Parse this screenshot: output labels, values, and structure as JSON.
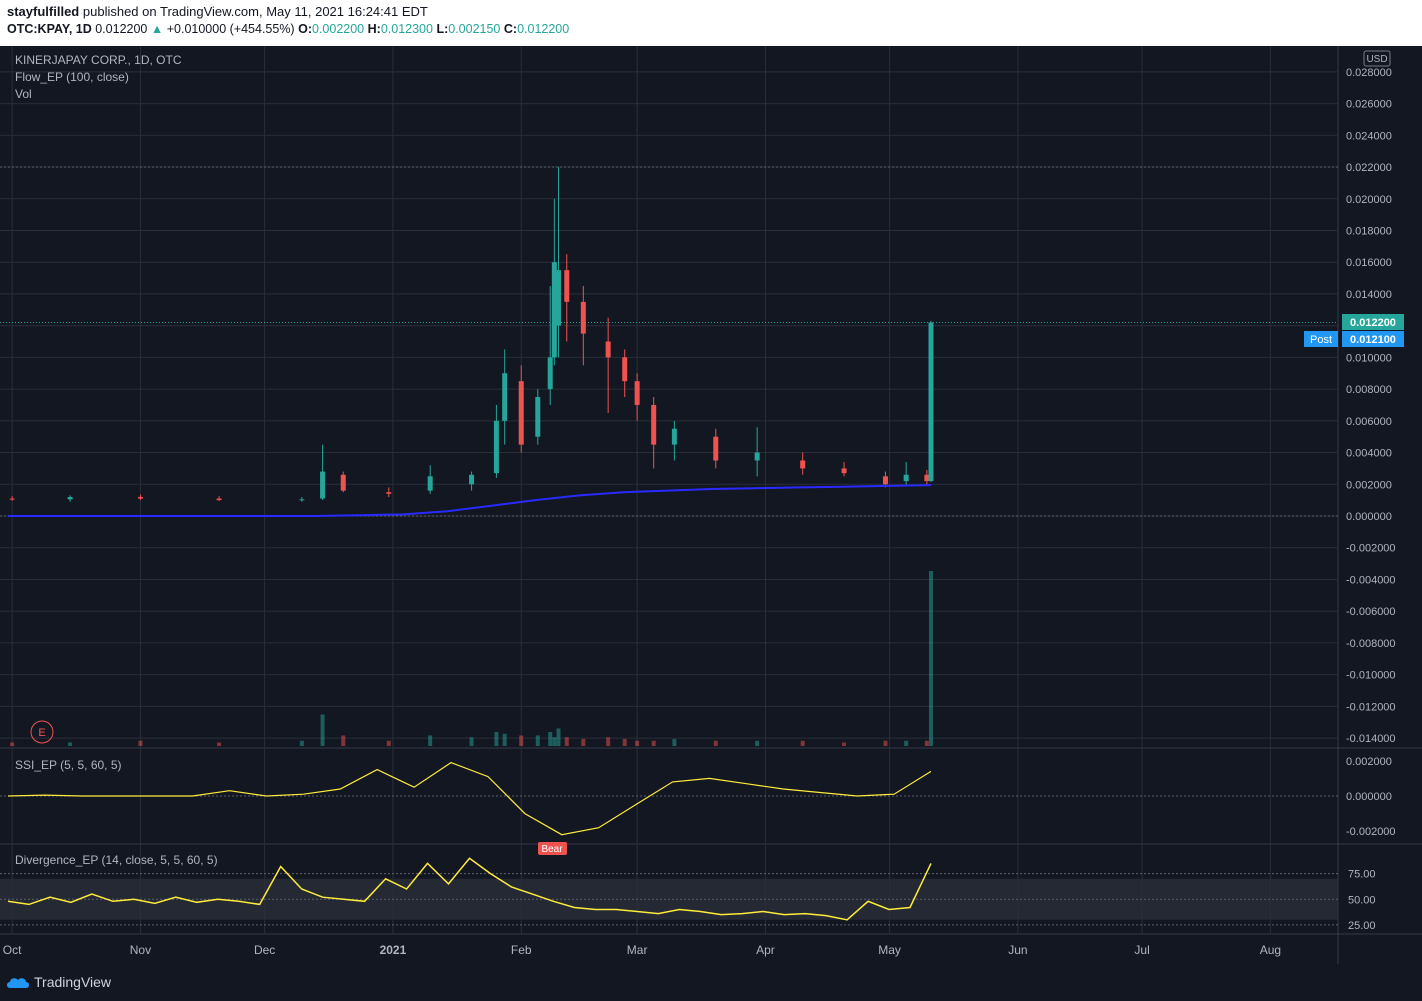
{
  "header": {
    "user": "stayfulfilled",
    "published_text": "published on TradingView.com, May 11, 2021 16:24:41 EDT",
    "symbol": "OTC:KPAY, 1D",
    "last": "0.012200",
    "arrow": "▲",
    "change": "+0.010000 (+454.55%)",
    "o_label": "O:",
    "o_val": "0.002200",
    "h_label": "H:",
    "h_val": "0.012300",
    "l_label": "L:",
    "l_val": "0.002150",
    "c_label": "C:",
    "c_val": "0.012200"
  },
  "legend": {
    "title": "KINERJAPAY CORP., 1D, OTC",
    "ind1": "Flow_EP (100, close)",
    "ind2": "Vol",
    "ssi": "SSI_EP (5, 5, 60, 5)",
    "div": "Divergence_EP (14, close, 5, 5, 60, 5)",
    "bear_label": "Bear",
    "event_marker": "E"
  },
  "price_axis": {
    "currency": "USD",
    "labels": [
      "0.028000",
      "0.026000",
      "0.024000",
      "0.022000",
      "0.020000",
      "0.018000",
      "0.016000",
      "0.014000",
      "0.012000",
      "0.010000",
      "0.008000",
      "0.006000",
      "0.004000",
      "0.002000",
      "0.000000",
      "-0.002000",
      "-0.004000",
      "-0.006000",
      "-0.008000",
      "-0.010000",
      "-0.012000",
      "-0.014000"
    ],
    "last_price_tag": "0.012200",
    "post_label": "Post",
    "post_price_tag": "0.012100"
  },
  "ssi_axis": {
    "labels": [
      "0.002000",
      "0.000000",
      "-0.002000"
    ]
  },
  "div_axis": {
    "labels": [
      "75.00",
      "50.00",
      "25.00"
    ]
  },
  "time_axis": {
    "labels": [
      "Oct",
      "Nov",
      "Dec",
      "2021",
      "Feb",
      "Mar",
      "Apr",
      "May",
      "Jun",
      "Jul",
      "Aug"
    ]
  },
  "footer": {
    "brand": "TradingView"
  },
  "colors": {
    "bg": "#131722",
    "grid": "#2a2e39",
    "up": "#26a69a",
    "down": "#ef5350",
    "flow": "#2a2aff",
    "ssi": "#ffeb3b",
    "text": "#b2b5be",
    "tag": "#2196f3"
  },
  "chart_data": {
    "type": "candlestick",
    "title": "KINERJAPAY CORP., 1D, OTC",
    "ylim": [
      -0.0145,
      0.029
    ],
    "candles": [
      {
        "d": "2020-10-01",
        "o": 0.0011,
        "h": 0.00125,
        "l": 0.00095,
        "c": 0.00105
      },
      {
        "d": "2020-10-15",
        "o": 0.00105,
        "h": 0.0013,
        "l": 0.0009,
        "c": 0.0012
      },
      {
        "d": "2020-11-01",
        "o": 0.0012,
        "h": 0.00135,
        "l": 0.001,
        "c": 0.0011
      },
      {
        "d": "2020-11-20",
        "o": 0.0011,
        "h": 0.00125,
        "l": 0.00095,
        "c": 0.001
      },
      {
        "d": "2020-12-10",
        "o": 0.001,
        "h": 0.0012,
        "l": 0.0009,
        "c": 0.00105
      },
      {
        "d": "2020-12-15",
        "o": 0.0011,
        "h": 0.0045,
        "l": 0.001,
        "c": 0.0028
      },
      {
        "d": "2020-12-20",
        "o": 0.0026,
        "h": 0.0028,
        "l": 0.0015,
        "c": 0.0016
      },
      {
        "d": "2020-12-31",
        "o": 0.0015,
        "h": 0.0018,
        "l": 0.0012,
        "c": 0.0014
      },
      {
        "d": "2021-01-10",
        "o": 0.0016,
        "h": 0.0032,
        "l": 0.0014,
        "c": 0.0025
      },
      {
        "d": "2021-01-20",
        "o": 0.002,
        "h": 0.0028,
        "l": 0.0016,
        "c": 0.0026
      },
      {
        "d": "2021-01-26",
        "o": 0.0027,
        "h": 0.007,
        "l": 0.0024,
        "c": 0.006
      },
      {
        "d": "2021-01-28",
        "o": 0.006,
        "h": 0.0105,
        "l": 0.0045,
        "c": 0.009
      },
      {
        "d": "2021-02-01",
        "o": 0.0085,
        "h": 0.0095,
        "l": 0.004,
        "c": 0.0045
      },
      {
        "d": "2021-02-05",
        "o": 0.005,
        "h": 0.008,
        "l": 0.0045,
        "c": 0.0075
      },
      {
        "d": "2021-02-08",
        "o": 0.008,
        "h": 0.0145,
        "l": 0.007,
        "c": 0.01
      },
      {
        "d": "2021-02-09",
        "o": 0.01,
        "h": 0.02,
        "l": 0.0095,
        "c": 0.016
      },
      {
        "d": "2021-02-10",
        "o": 0.012,
        "h": 0.022,
        "l": 0.01,
        "c": 0.0155
      },
      {
        "d": "2021-02-12",
        "o": 0.0155,
        "h": 0.0165,
        "l": 0.011,
        "c": 0.0135
      },
      {
        "d": "2021-02-16",
        "o": 0.0135,
        "h": 0.0145,
        "l": 0.0095,
        "c": 0.0115
      },
      {
        "d": "2021-02-22",
        "o": 0.011,
        "h": 0.0125,
        "l": 0.0065,
        "c": 0.01
      },
      {
        "d": "2021-02-26",
        "o": 0.01,
        "h": 0.0105,
        "l": 0.0075,
        "c": 0.0085
      },
      {
        "d": "2021-03-01",
        "o": 0.0085,
        "h": 0.009,
        "l": 0.006,
        "c": 0.007
      },
      {
        "d": "2021-03-05",
        "o": 0.007,
        "h": 0.0075,
        "l": 0.003,
        "c": 0.0045
      },
      {
        "d": "2021-03-10",
        "o": 0.0045,
        "h": 0.006,
        "l": 0.0035,
        "c": 0.0055
      },
      {
        "d": "2021-03-20",
        "o": 0.005,
        "h": 0.0055,
        "l": 0.003,
        "c": 0.0035
      },
      {
        "d": "2021-03-30",
        "o": 0.0035,
        "h": 0.0056,
        "l": 0.0025,
        "c": 0.004
      },
      {
        "d": "2021-04-10",
        "o": 0.0035,
        "h": 0.004,
        "l": 0.0026,
        "c": 0.003
      },
      {
        "d": "2021-04-20",
        "o": 0.003,
        "h": 0.0034,
        "l": 0.0025,
        "c": 0.0027
      },
      {
        "d": "2021-04-30",
        "o": 0.0025,
        "h": 0.0028,
        "l": 0.0018,
        "c": 0.002
      },
      {
        "d": "2021-05-05",
        "o": 0.0022,
        "h": 0.0034,
        "l": 0.0019,
        "c": 0.0026
      },
      {
        "d": "2021-05-10",
        "o": 0.0026,
        "h": 0.0029,
        "l": 0.0019,
        "c": 0.0022
      },
      {
        "d": "2021-05-11",
        "o": 0.0022,
        "h": 0.0123,
        "l": 0.00215,
        "c": 0.0122
      }
    ],
    "flow_ep": [
      0.0,
      0.0,
      0.0,
      0.0,
      0.0,
      0.0,
      0.0,
      0.0,
      5e-05,
      0.0001,
      0.0003,
      0.00065,
      0.001,
      0.0013,
      0.0015,
      0.0016,
      0.0017,
      0.00175,
      0.0018,
      0.00185,
      0.0019,
      0.00195
    ],
    "volume_rel": [
      0.02,
      0.02,
      0.03,
      0.02,
      0.03,
      0.18,
      0.06,
      0.03,
      0.06,
      0.05,
      0.08,
      0.07,
      0.06,
      0.06,
      0.08,
      0.05,
      0.1,
      0.05,
      0.04,
      0.05,
      0.04,
      0.03,
      0.03,
      0.04,
      0.03,
      0.03,
      0.03,
      0.02,
      0.03,
      0.03,
      0.03,
      1.0
    ],
    "ssi_range": [
      -0.0025,
      0.0025
    ],
    "ssi_signal": [
      0.0,
      5e-05,
      0.0,
      0.0,
      0.0,
      0.0,
      0.0003,
      0.0,
      0.0001,
      0.0004,
      0.0015,
      0.0005,
      0.0019,
      0.0011,
      -0.001,
      -0.0022,
      -0.0018,
      -0.0005,
      0.0008,
      0.001,
      0.0007,
      0.0004,
      0.0002,
      0.0,
      0.0001,
      0.0014
    ],
    "divergence": [
      48,
      45,
      52,
      47,
      55,
      48,
      50,
      46,
      52,
      47,
      50,
      48,
      45,
      82,
      60,
      52,
      50,
      48,
      70,
      60,
      85,
      65,
      90,
      75,
      62,
      55,
      48,
      42,
      40,
      40,
      38,
      36,
      40,
      38,
      35,
      36,
      38,
      35,
      36,
      34,
      30,
      48,
      40,
      42,
      85
    ],
    "divergence_band": [
      30,
      70
    ]
  }
}
